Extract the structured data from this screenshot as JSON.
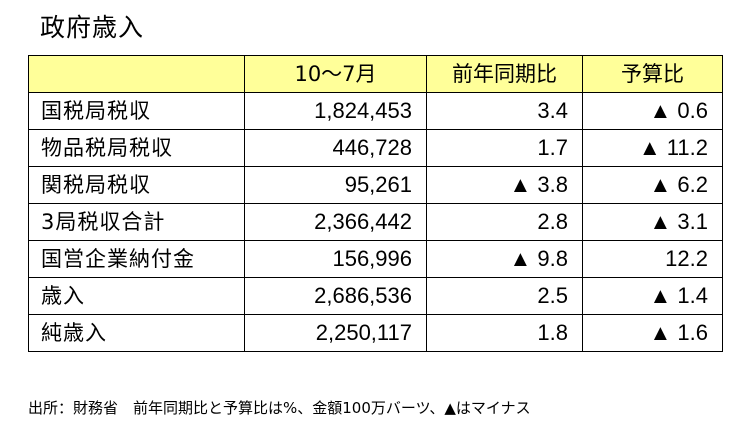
{
  "title": "政府歳入",
  "table": {
    "headers": [
      "",
      "10～7月",
      "前年同期比",
      "予算比"
    ],
    "rows": [
      {
        "label": "国税局税収",
        "value": "1,824,453",
        "yoy": "3.4",
        "budget": "▲ 0.6"
      },
      {
        "label": "物品税局税収",
        "value": "446,728",
        "yoy": "1.7",
        "budget": "▲ 11.2"
      },
      {
        "label": "関税局税収",
        "value": "95,261",
        "yoy": "▲ 3.8",
        "budget": "▲ 6.2"
      },
      {
        "label": "3局税収合計",
        "value": "2,366,442",
        "yoy": "2.8",
        "budget": "▲ 3.1"
      },
      {
        "label": "国営企業納付金",
        "value": "156,996",
        "yoy": "▲ 9.8",
        "budget": "12.2"
      },
      {
        "label": "歳入",
        "value": "2,686,536",
        "yoy": "2.5",
        "budget": "▲ 1.4"
      },
      {
        "label": "純歳入",
        "value": "2,250,117",
        "yoy": "1.8",
        "budget": "▲ 1.6"
      }
    ]
  },
  "footnote": "出所：財務省　前年同期比と予算比は%、金額100万バーツ、▲はマイナス"
}
